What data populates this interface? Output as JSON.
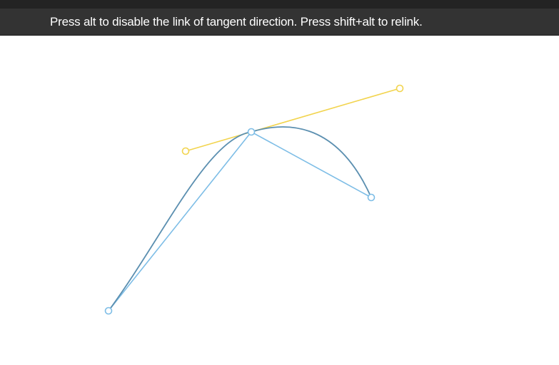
{
  "hint": {
    "text": "Press alt to disable the link of tangent direction. Press shift+alt to relink."
  },
  "editor": {
    "colors": {
      "curve": "#5b8fb0",
      "control_polygon": "#7dbde6",
      "tangent": "#f2d44e",
      "control_point": "#7dbde6",
      "tangent_handle": "#f2d44e"
    },
    "icons": {
      "control_point": "hollow-circle",
      "tangent_handle": "hollow-circle"
    }
  }
}
